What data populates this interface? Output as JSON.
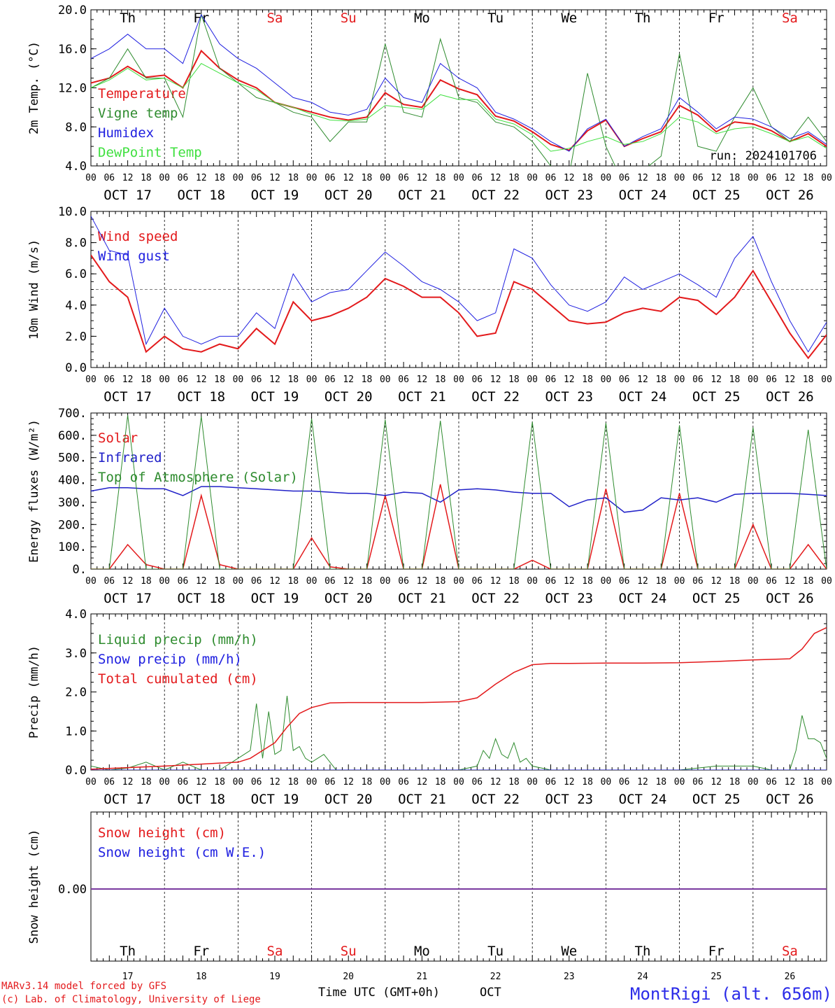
{
  "run_label": "run: 2024101706",
  "station_label": "MontRigi (alt. 656m)",
  "credits": [
    "MARv3.14 model forced by GFS",
    "(c) Lab. of Climatology, University of Liege"
  ],
  "time_axis_label": "Time UTC (GMT+0h)",
  "month_label": "OCT",
  "days": [
    "Th",
    "Fr",
    "Sa",
    "Su",
    "Mo",
    "Tu",
    "We",
    "Th",
    "Fr",
    "Sa"
  ],
  "weekend_flags": [
    false,
    false,
    true,
    true,
    false,
    false,
    false,
    false,
    false,
    true
  ],
  "dates": [
    "OCT 17",
    "OCT 18",
    "OCT 19",
    "OCT 20",
    "OCT 21",
    "OCT 22",
    "OCT 23",
    "OCT 24",
    "OCT 25",
    "OCT 26"
  ],
  "day_numbers": [
    "17",
    "18",
    "19",
    "20",
    "21",
    "22",
    "23",
    "24",
    "25",
    "26"
  ],
  "hour_ticks": [
    "00",
    "06",
    "12",
    "18"
  ],
  "colors": {
    "temp": "#e31a1c",
    "vigne": "#2e8b2e",
    "humidex": "#2020e0",
    "dewpoint": "#40e040",
    "solar": "#e31a1c",
    "infrared": "#2020c8",
    "toa": "#2e8b2e",
    "liquid": "#2e8b2e",
    "snow": "#2020e0",
    "cumul": "#e31a1c",
    "snow_height": "#e31a1c",
    "snow_we": "#2020e0",
    "snow_line": "#7a3aa0",
    "weekend": "#e31a1c",
    "weekday": "#000000"
  },
  "chart_data": [
    {
      "type": "line",
      "ylabel": "2m Temp. (°C)",
      "ylim": [
        4,
        20
      ],
      "yticks": [
        "4.0",
        "8.0",
        "12.0",
        "16.0",
        "20.0"
      ],
      "x_unit": "hours since Oct 17 00 UTC",
      "series": [
        {
          "name": "Temperature",
          "x": [
            0,
            6,
            12,
            18,
            24,
            30,
            36,
            42,
            48,
            54,
            60,
            66,
            72,
            78,
            84,
            90,
            96,
            102,
            108,
            114,
            120,
            126,
            132,
            138,
            144,
            150,
            156,
            162,
            168,
            174,
            180,
            186,
            192,
            198,
            204,
            210,
            216,
            222,
            228,
            234,
            240
          ],
          "values": [
            12.5,
            13.0,
            14.2,
            13.1,
            13.3,
            12.0,
            15.8,
            14.0,
            12.8,
            12.0,
            10.5,
            10.0,
            9.5,
            9.0,
            8.7,
            9.0,
            11.5,
            10.3,
            10.0,
            12.8,
            11.9,
            11.3,
            9.1,
            8.6,
            7.5,
            6.2,
            5.6,
            7.6,
            8.7,
            6.0,
            6.8,
            7.5,
            10.2,
            9.2,
            7.5,
            8.5,
            8.3,
            7.6,
            6.5,
            7.3,
            6.0
          ]
        },
        {
          "name": "Vigne temp",
          "x": [
            0,
            6,
            12,
            18,
            24,
            30,
            36,
            42,
            48,
            54,
            60,
            66,
            72,
            78,
            84,
            90,
            96,
            102,
            108,
            114,
            120,
            126,
            132,
            138,
            144,
            150,
            156,
            162,
            168,
            174,
            180,
            186,
            192,
            198,
            204,
            210,
            216,
            222,
            228,
            234,
            240
          ],
          "values": [
            12.0,
            13.0,
            16.0,
            13.0,
            13.0,
            9.0,
            19.5,
            14.0,
            12.5,
            11.0,
            10.5,
            9.5,
            9.0,
            6.5,
            8.5,
            8.5,
            16.5,
            9.5,
            9.0,
            17.0,
            11.0,
            10.5,
            8.5,
            8.0,
            6.5,
            4.0,
            3.0,
            13.5,
            6.0,
            2.0,
            3.5,
            5.0,
            15.5,
            6.0,
            5.5,
            9.0,
            12.0,
            8.0,
            6.5,
            9.0,
            6.5
          ]
        },
        {
          "name": "Humidex",
          "x": [
            0,
            6,
            12,
            18,
            24,
            30,
            36,
            42,
            48,
            54,
            60,
            66,
            72,
            78,
            84,
            90,
            96,
            102,
            108,
            114,
            120,
            126,
            132,
            138,
            144,
            150,
            156,
            162,
            168,
            174,
            180,
            186,
            192,
            198,
            204,
            210,
            216,
            222,
            228,
            234,
            240
          ],
          "values": [
            15.0,
            16.0,
            17.5,
            16.0,
            16.0,
            14.5,
            19.5,
            16.5,
            15.0,
            14.0,
            12.5,
            11.0,
            10.5,
            9.5,
            9.2,
            9.8,
            13.0,
            11.0,
            10.5,
            14.5,
            13.0,
            12.0,
            9.5,
            8.8,
            7.8,
            6.5,
            5.5,
            7.8,
            8.8,
            6.0,
            7.0,
            7.8,
            11.0,
            9.5,
            7.8,
            9.0,
            8.8,
            8.0,
            6.8,
            7.5,
            6.2
          ]
        },
        {
          "name": "DewPoint Temp",
          "x": [
            0,
            6,
            12,
            18,
            24,
            30,
            36,
            42,
            48,
            54,
            60,
            66,
            72,
            78,
            84,
            90,
            96,
            102,
            108,
            114,
            120,
            126,
            132,
            138,
            144,
            150,
            156,
            162,
            168,
            174,
            180,
            186,
            192,
            198,
            204,
            210,
            216,
            222,
            228,
            234,
            240
          ],
          "values": [
            12.0,
            12.8,
            14.0,
            12.8,
            13.0,
            12.0,
            14.5,
            13.5,
            12.5,
            11.8,
            10.5,
            10.0,
            9.3,
            8.7,
            8.6,
            8.8,
            10.2,
            10.0,
            9.8,
            11.3,
            10.8,
            10.8,
            8.8,
            8.3,
            7.2,
            5.5,
            5.8,
            6.5,
            7.0,
            6.2,
            6.5,
            7.3,
            9.0,
            8.5,
            7.3,
            7.8,
            8.0,
            7.3,
            6.5,
            7.0,
            5.8
          ]
        }
      ]
    },
    {
      "type": "line",
      "ylabel": "10m Wind (m/s)",
      "ylim": [
        0,
        10
      ],
      "yticks": [
        "0.0",
        "2.0",
        "4.0",
        "6.0",
        "8.0",
        "10.0"
      ],
      "reference_line": 5,
      "series": [
        {
          "name": "Wind speed",
          "x": [
            0,
            6,
            12,
            18,
            24,
            30,
            36,
            42,
            48,
            54,
            60,
            66,
            72,
            78,
            84,
            90,
            96,
            102,
            108,
            114,
            120,
            126,
            132,
            138,
            144,
            150,
            156,
            162,
            168,
            174,
            180,
            186,
            192,
            198,
            204,
            210,
            216,
            222,
            228,
            234,
            240
          ],
          "values": [
            7.2,
            5.5,
            4.5,
            1.0,
            2.0,
            1.2,
            1.0,
            1.5,
            1.2,
            2.5,
            1.5,
            4.2,
            3.0,
            3.3,
            3.8,
            4.5,
            5.7,
            5.2,
            4.5,
            4.5,
            3.5,
            2.0,
            2.2,
            5.5,
            5.0,
            4.0,
            3.0,
            2.8,
            2.9,
            3.5,
            3.8,
            3.6,
            4.5,
            4.3,
            3.4,
            4.5,
            6.2,
            4.2,
            2.2,
            0.6,
            2.1
          ]
        },
        {
          "name": "Wind gust",
          "x": [
            0,
            6,
            12,
            18,
            24,
            30,
            36,
            42,
            48,
            54,
            60,
            66,
            72,
            78,
            84,
            90,
            96,
            102,
            108,
            114,
            120,
            126,
            132,
            138,
            144,
            150,
            156,
            162,
            168,
            174,
            180,
            186,
            192,
            198,
            204,
            210,
            216,
            222,
            228,
            234,
            240
          ],
          "values": [
            9.7,
            7.5,
            7.2,
            1.5,
            3.8,
            2.0,
            1.5,
            2.0,
            2.0,
            3.5,
            2.5,
            6.0,
            4.2,
            4.8,
            5.0,
            6.2,
            7.4,
            6.5,
            5.5,
            5.0,
            4.2,
            3.0,
            3.5,
            7.6,
            7.0,
            5.3,
            4.0,
            3.6,
            4.2,
            5.8,
            5.0,
            5.5,
            6.0,
            5.3,
            4.5,
            7.0,
            8.4,
            5.5,
            3.0,
            1.0,
            2.9
          ]
        }
      ]
    },
    {
      "type": "line",
      "ylabel": "Energy fluxes (W/m²)",
      "ylim": [
        0,
        700
      ],
      "yticks": [
        "0.",
        "100.",
        "200.",
        "300.",
        "400.",
        "500.",
        "600.",
        "700."
      ],
      "series": [
        {
          "name": "Solar",
          "x": [
            0,
            6,
            12,
            18,
            24,
            30,
            36,
            42,
            48,
            54,
            60,
            66,
            72,
            78,
            84,
            90,
            96,
            102,
            108,
            114,
            120,
            126,
            132,
            138,
            144,
            150,
            156,
            162,
            168,
            174,
            180,
            186,
            192,
            198,
            204,
            210,
            216,
            222,
            228,
            234,
            240
          ],
          "values": [
            0,
            0,
            110,
            20,
            0,
            0,
            330,
            20,
            0,
            0,
            0,
            0,
            140,
            10,
            0,
            0,
            330,
            0,
            0,
            380,
            0,
            0,
            0,
            0,
            40,
            0,
            0,
            0,
            360,
            0,
            0,
            0,
            340,
            0,
            0,
            0,
            200,
            0,
            0,
            110,
            0
          ]
        },
        {
          "name": "Infrared",
          "x": [
            0,
            6,
            12,
            18,
            24,
            30,
            36,
            42,
            48,
            54,
            60,
            66,
            72,
            78,
            84,
            90,
            96,
            102,
            108,
            114,
            120,
            126,
            132,
            138,
            144,
            150,
            156,
            162,
            168,
            174,
            180,
            186,
            192,
            198,
            204,
            210,
            216,
            222,
            228,
            234,
            240
          ],
          "values": [
            350,
            365,
            365,
            360,
            360,
            330,
            370,
            370,
            365,
            360,
            355,
            350,
            350,
            345,
            340,
            340,
            330,
            345,
            340,
            300,
            355,
            360,
            355,
            345,
            340,
            340,
            280,
            310,
            320,
            255,
            265,
            320,
            310,
            320,
            300,
            335,
            340,
            340,
            340,
            335,
            330
          ]
        },
        {
          "name": "Top of Atmosphere (Solar)",
          "x": [
            0,
            6,
            12,
            18,
            24,
            30,
            36,
            42,
            48,
            54,
            60,
            66,
            72,
            78,
            84,
            90,
            96,
            102,
            108,
            114,
            120,
            126,
            132,
            138,
            144,
            150,
            156,
            162,
            168,
            174,
            180,
            186,
            192,
            198,
            204,
            210,
            216,
            222,
            228,
            234,
            240
          ],
          "values": [
            0,
            0,
            690,
            0,
            0,
            0,
            685,
            0,
            0,
            0,
            0,
            0,
            675,
            0,
            0,
            0,
            670,
            0,
            0,
            665,
            0,
            0,
            0,
            0,
            660,
            0,
            0,
            0,
            655,
            0,
            0,
            0,
            645,
            0,
            0,
            0,
            635,
            0,
            0,
            625,
            0
          ]
        }
      ]
    },
    {
      "type": "line",
      "ylabel": "Precip (mm/h)",
      "ylim": [
        0,
        4
      ],
      "yticks": [
        "0.0",
        "1.0",
        "2.0",
        "3.0",
        "4.0"
      ],
      "series": [
        {
          "name": "Liquid precip (mm/h)",
          "x": [
            0,
            6,
            12,
            18,
            24,
            30,
            36,
            42,
            48,
            52,
            54,
            56,
            58,
            60,
            62,
            64,
            66,
            68,
            70,
            72,
            76,
            80,
            84,
            90,
            96,
            108,
            120,
            126,
            128,
            130,
            132,
            134,
            136,
            138,
            140,
            142,
            144,
            150,
            156,
            168,
            180,
            192,
            204,
            210,
            216,
            222,
            228,
            230,
            232,
            234,
            236,
            238,
            240
          ],
          "values": [
            0.1,
            0,
            0.05,
            0.2,
            0,
            0.2,
            0,
            0,
            0.3,
            0.5,
            1.7,
            0.3,
            1.5,
            0.4,
            0.5,
            1.9,
            0.5,
            0.6,
            0.3,
            0.2,
            0.4,
            0,
            0,
            0,
            0,
            0,
            0,
            0.1,
            0.5,
            0.3,
            0.8,
            0.4,
            0.3,
            0.7,
            0.2,
            0.3,
            0.1,
            0,
            0,
            0,
            0,
            0,
            0.1,
            0.1,
            0.1,
            0,
            0,
            0.5,
            1.4,
            0.8,
            0.8,
            0.7,
            0.3
          ]
        },
        {
          "name": "Snow precip (mm/h)",
          "x": [
            0,
            240
          ],
          "values": [
            0,
            0
          ]
        },
        {
          "name": "Total cumulated (cm)",
          "x": [
            0,
            24,
            48,
            52,
            56,
            60,
            64,
            68,
            72,
            78,
            84,
            96,
            108,
            120,
            126,
            132,
            138,
            144,
            150,
            156,
            168,
            180,
            192,
            204,
            216,
            228,
            232,
            236,
            240
          ],
          "values": [
            0.02,
            0.1,
            0.2,
            0.3,
            0.5,
            0.7,
            1.1,
            1.45,
            1.6,
            1.72,
            1.73,
            1.73,
            1.73,
            1.75,
            1.85,
            2.2,
            2.5,
            2.7,
            2.73,
            2.73,
            2.74,
            2.74,
            2.75,
            2.78,
            2.82,
            2.85,
            3.1,
            3.5,
            3.65
          ]
        }
      ]
    },
    {
      "type": "line",
      "ylabel": "Snow height (cm)",
      "yticks": [
        "0.00"
      ],
      "series": [
        {
          "name": "Snow height (cm)",
          "x": [
            0,
            240
          ],
          "values": [
            0,
            0
          ]
        },
        {
          "name": "Snow height (cm W.E.)",
          "x": [
            0,
            240
          ],
          "values": [
            0,
            0
          ]
        }
      ]
    }
  ]
}
